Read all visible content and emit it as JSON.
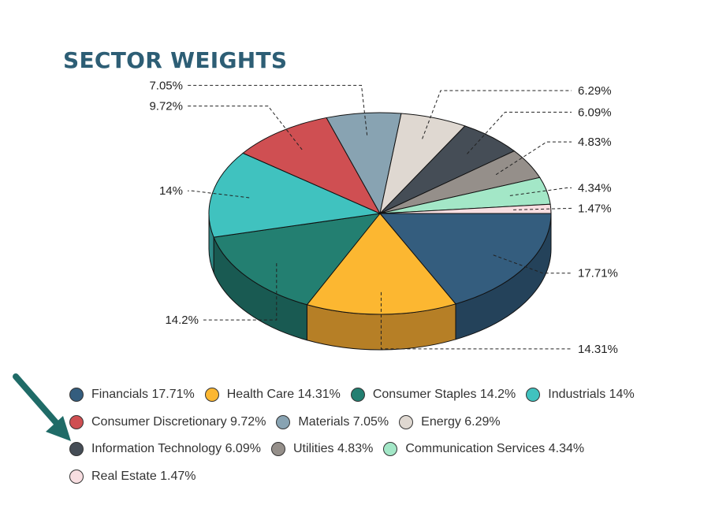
{
  "title": "SECTOR WEIGHTS",
  "colors": {
    "title": "#2d5e75",
    "arrow": "#1f6b67"
  },
  "chart_data": {
    "type": "pie",
    "style": "3d",
    "slices": [
      {
        "name": "Financials",
        "value": 17.71,
        "label": "17.71%",
        "legend": "Financials 17.71%",
        "color": "#345d7e",
        "side": "#24425a"
      },
      {
        "name": "Health Care",
        "value": 14.31,
        "label": "14.31%",
        "legend": "Health Care 14.31%",
        "color": "#fcb731",
        "side": "#b67f26"
      },
      {
        "name": "Consumer Staples",
        "value": 14.2,
        "label": "14.2%",
        "legend": "Consumer Staples 14.2%",
        "color": "#237f71",
        "side": "#195a52"
      },
      {
        "name": "Industrials",
        "value": 14,
        "label": "14%",
        "legend": "Industrials 14%",
        "color": "#40c2bf",
        "side": "#2d8986"
      },
      {
        "name": "Consumer Discretionary",
        "value": 9.72,
        "label": "9.72%",
        "legend": "Consumer Discretionary 9.72%",
        "color": "#cf4f52",
        "side": "#93383a"
      },
      {
        "name": "Materials",
        "value": 7.05,
        "label": "7.05%",
        "legend": "Materials 7.05%",
        "color": "#88a3b2",
        "side": "#60747f"
      },
      {
        "name": "Energy",
        "value": 6.29,
        "label": "6.29%",
        "legend": "Energy 6.29%",
        "color": "#dfd8d1",
        "side": "#9e9994"
      },
      {
        "name": "Information Technology",
        "value": 6.09,
        "label": "6.09%",
        "legend": "Information Technology 6.09%",
        "color": "#454d56",
        "side": "#30363d"
      },
      {
        "name": "Utilities",
        "value": 4.83,
        "label": "4.83%",
        "legend": "Utilities 4.83%",
        "color": "#958f8a",
        "side": "#6a6562"
      },
      {
        "name": "Communication Services",
        "value": 4.34,
        "label": "4.34%",
        "legend": "Communication Services 4.34%",
        "color": "#a3e7c7",
        "side": "#74a48d"
      },
      {
        "name": "Real Estate",
        "value": 1.47,
        "label": "1.47%",
        "legend": "Real Estate 1.47%",
        "color": "#f8dee1",
        "side": "#b09ea0"
      }
    ],
    "legend_placement": "bottom"
  }
}
